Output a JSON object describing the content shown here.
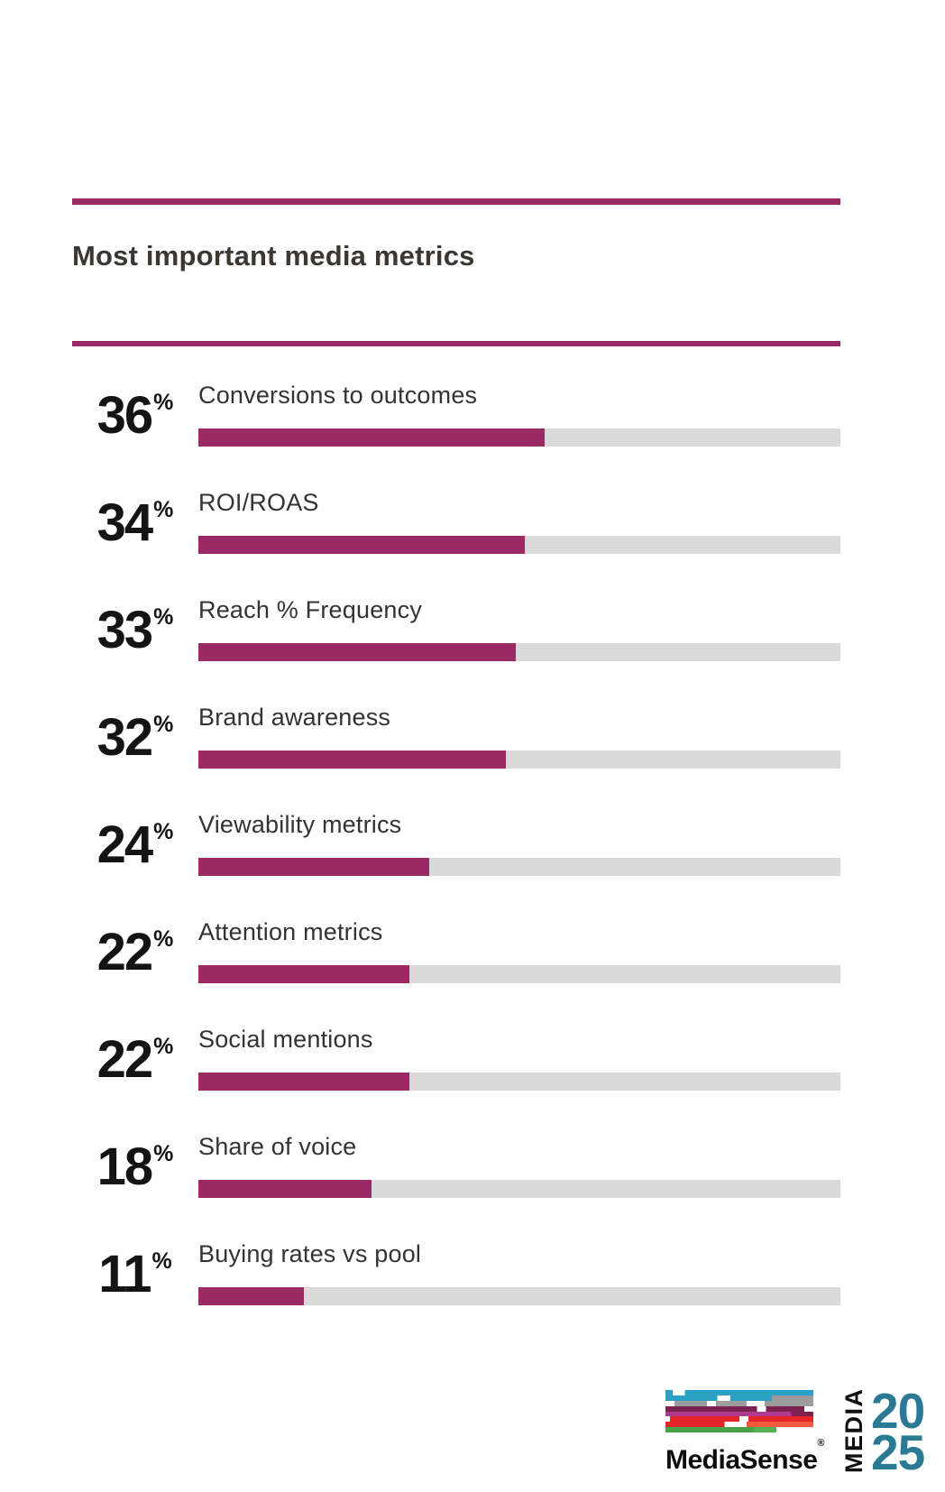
{
  "header": {
    "title": "Most important media metrics"
  },
  "chart_data": {
    "type": "bar",
    "orientation": "horizontal",
    "title": "Most important media metrics",
    "unit": "%",
    "categories": [
      "Conversions to outcomes",
      "ROI/ROAS",
      "Reach % Frequency",
      "Brand awareness",
      "Viewability metrics",
      "Attention metrics",
      "Social mentions",
      "Share of voice",
      "Buying rates vs pool"
    ],
    "values": [
      36,
      34,
      33,
      32,
      24,
      22,
      22,
      18,
      11
    ],
    "xlim": [
      0,
      67
    ],
    "grid": false,
    "legend": false,
    "bar_color": "#9B2964",
    "track_color": "#D9D9D9"
  },
  "rows": [
    {
      "value": "36",
      "unit": "%",
      "label": "Conversions to outcomes",
      "fill_pct": 53.9
    },
    {
      "value": "34",
      "unit": "%",
      "label": "ROI/ROAS",
      "fill_pct": 50.9
    },
    {
      "value": "33",
      "unit": "%",
      "label": "Reach % Frequency",
      "fill_pct": 49.4
    },
    {
      "value": "32",
      "unit": "%",
      "label": "Brand awareness",
      "fill_pct": 47.9
    },
    {
      "value": "24",
      "unit": "%",
      "label": "Viewability metrics",
      "fill_pct": 35.9
    },
    {
      "value": "22",
      "unit": "%",
      "label": "Attention metrics",
      "fill_pct": 32.9
    },
    {
      "value": "22",
      "unit": "%",
      "label": "Social mentions",
      "fill_pct": 32.9
    },
    {
      "value": "18",
      "unit": "%",
      "label": "Share of voice",
      "fill_pct": 26.9
    },
    {
      "value": "11",
      "unit": "%",
      "label": "Buying rates vs pool",
      "fill_pct": 16.5
    }
  ],
  "footer": {
    "brand": "MediaSense",
    "registered_mark": "®",
    "event_vertical": "MEDIA",
    "event_year_top": "20",
    "event_year_bottom": "25"
  },
  "colors": {
    "accent": "#9B2964",
    "track": "#D9D9D9",
    "teal": "#2BA0C5",
    "teal2": "#2A7A96",
    "gray": "#9D9D9D",
    "berry": "#7D2150",
    "magenta": "#B13A8E",
    "red": "#E5232A",
    "orange": "#F05B40",
    "green": "#44A447",
    "green2": "#53B153"
  }
}
